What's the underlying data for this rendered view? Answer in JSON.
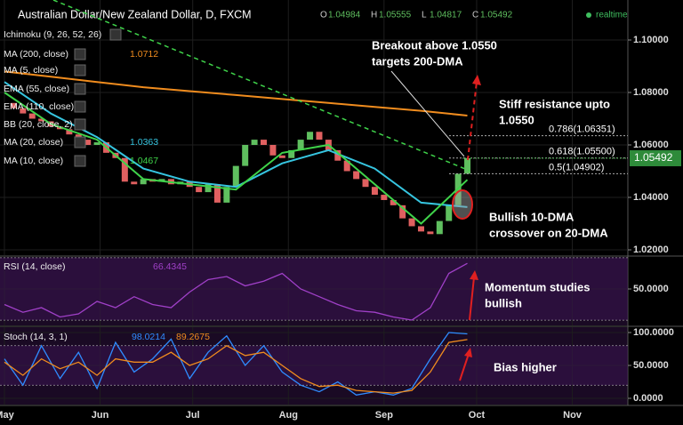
{
  "chart_data": [
    {
      "type": "candlestick",
      "title": "Australian Dollar/New Zealand Dollar, D, FXCM",
      "ohlc": [
        {
          "label": "O",
          "value": 1.04984
        },
        {
          "label": "H",
          "value": 1.05555
        },
        {
          "label": "L",
          "value": 1.04817
        },
        {
          "label": "C",
          "value": 1.05492
        }
      ],
      "status": "realtime",
      "x": [
        0,
        3,
        6,
        9,
        12,
        15,
        18,
        21,
        24,
        27,
        30,
        33,
        36,
        39,
        42,
        45,
        48,
        51,
        54,
        57,
        60,
        63,
        66,
        69,
        72,
        75,
        78,
        81,
        84,
        87,
        90,
        93,
        96,
        99,
        102,
        105,
        108,
        111,
        114,
        117,
        120,
        123,
        126,
        129,
        132,
        135,
        138,
        141,
        144,
        147,
        150
      ],
      "close": [
        1.076,
        1.074,
        1.072,
        1.07,
        1.069,
        1.067,
        1.066,
        1.064,
        1.062,
        1.06,
        1.061,
        1.057,
        1.055,
        1.046,
        1.045,
        1.047,
        1.046,
        1.047,
        1.045,
        1.046,
        1.044,
        1.042,
        1.045,
        1.038,
        1.044,
        1.052,
        1.06,
        1.062,
        1.06,
        1.056,
        1.055,
        1.058,
        1.062,
        1.065,
        1.062,
        1.058,
        1.054,
        1.05,
        1.047,
        1.044,
        1.041,
        1.039,
        1.037,
        1.032,
        1.029,
        1.027,
        1.026,
        1.031,
        1.037,
        1.049,
        1.05492
      ],
      "up_color": "#5fbf5f",
      "down_color": "#e06060",
      "xlim": [
        -1.44,
        202
      ],
      "xticks": [
        {
          "value": 0,
          "label": "May"
        },
        {
          "value": 31,
          "label": "Jun"
        },
        {
          "value": 61,
          "label": "Jul"
        },
        {
          "value": 92,
          "label": "Aug"
        },
        {
          "value": 123,
          "label": "Sep"
        },
        {
          "value": 153,
          "label": "Oct"
        },
        {
          "value": 184,
          "label": "Nov"
        }
      ],
      "ylim": [
        1.01797,
        1.11525
      ],
      "yticks": [
        {
          "value": 1.02,
          "label": "1.02000"
        },
        {
          "value": 1.04,
          "label": "1.04000"
        },
        {
          "value": 1.06,
          "label": "1.06000"
        },
        {
          "value": 1.08,
          "label": "1.08000"
        },
        {
          "value": 1.1,
          "label": "1.10000"
        }
      ],
      "series": [
        {
          "name": "Ichimoku (9, 26, 52, 26)"
        },
        {
          "name": "MA (200, close)",
          "color": "#f08c1e",
          "x": [
            0,
            15,
            30,
            45,
            60,
            75,
            90,
            105,
            120,
            135,
            150
          ],
          "values": [
            1.088,
            1.086,
            1.084,
            1.082,
            1.0805,
            1.079,
            1.0775,
            1.076,
            1.0745,
            1.073,
            1.0712
          ]
        },
        {
          "name": "MA (5, close)"
        },
        {
          "name": "EMA (55, close)"
        },
        {
          "name": "EMA (110, close)"
        },
        {
          "name": "BB (20, close, 2)"
        },
        {
          "name": "MA (20, close)",
          "color": "#36c5e0",
          "x": [
            0,
            15,
            30,
            45,
            60,
            75,
            90,
            105,
            120,
            135,
            150
          ],
          "values": [
            1.084,
            1.072,
            1.063,
            1.051,
            1.046,
            1.044,
            1.053,
            1.058,
            1.051,
            1.038,
            1.0363
          ]
        },
        {
          "name": "MA (10, close)",
          "color": "#3fd34a",
          "x": [
            0,
            15,
            30,
            45,
            60,
            75,
            90,
            105,
            120,
            135,
            150
          ],
          "values": [
            1.08,
            1.068,
            1.062,
            1.047,
            1.045,
            1.043,
            1.057,
            1.06,
            1.045,
            1.03,
            1.0467
          ]
        }
      ],
      "fib_levels": [
        {
          "label": "0.786(1.06351)",
          "value": 1.06351
        },
        {
          "label": "0.618(1.05500)",
          "value": 1.055
        },
        {
          "label": "0.5(1.04902)",
          "value": 1.04902
        }
      ],
      "annotations": [
        {
          "lines": [
            "Breakout above 1.0550",
            "targets 200-DMA"
          ]
        },
        {
          "lines": [
            "Stiff resistance upto",
            "1.0550"
          ]
        },
        {
          "lines": [
            "Bullish 10-DMA",
            "crossover on 20-DMA"
          ]
        },
        {
          "lines": [
            "Momentum studies",
            "bullish"
          ]
        },
        {
          "lines": [
            "Bias higher"
          ]
        }
      ]
    },
    {
      "type": "line",
      "x": [
        0,
        6,
        12,
        18,
        24,
        30,
        36,
        42,
        48,
        54,
        60,
        66,
        72,
        78,
        84,
        90,
        96,
        102,
        108,
        114,
        120,
        126,
        132,
        138,
        144,
        150
      ],
      "ylim": [
        26.57,
        70.57
      ],
      "yticks": [
        {
          "value": 50,
          "label": "50.0000"
        }
      ],
      "levels": [
        30,
        70
      ],
      "series": [
        {
          "name": "RSI (14, close)",
          "color": "#a040c8",
          "values": [
            40,
            35,
            38,
            32,
            34,
            42,
            38,
            45,
            40,
            38,
            48,
            56,
            58,
            52,
            55,
            60,
            50,
            45,
            40,
            36,
            35,
            32,
            30,
            38,
            60,
            66.4345
          ]
        }
      ]
    },
    {
      "type": "line",
      "x": [
        0,
        6,
        12,
        18,
        24,
        30,
        36,
        42,
        48,
        54,
        60,
        66,
        72,
        78,
        84,
        90,
        96,
        102,
        108,
        114,
        120,
        126,
        132,
        138,
        144,
        150
      ],
      "ylim": [
        -9.46,
        108.1
      ],
      "yticks": [
        {
          "value": 0,
          "label": "0.0000"
        },
        {
          "value": 50,
          "label": "50.0000"
        },
        {
          "value": 100,
          "label": "100.0000"
        }
      ],
      "levels": [
        20,
        80
      ],
      "title": "Stoch (14, 3, 1)",
      "series": [
        {
          "color": "#2f8cff",
          "values": [
            60,
            20,
            80,
            30,
            70,
            15,
            85,
            40,
            60,
            90,
            30,
            70,
            95,
            50,
            80,
            40,
            20,
            10,
            25,
            5,
            10,
            5,
            15,
            60,
            100,
            98.0214
          ]
        },
        {
          "color": "#f08c1e",
          "values": [
            55,
            35,
            60,
            45,
            55,
            35,
            60,
            55,
            55,
            70,
            50,
            60,
            80,
            65,
            70,
            50,
            30,
            18,
            20,
            12,
            10,
            8,
            12,
            40,
            85,
            89.2675
          ]
        }
      ]
    }
  ]
}
